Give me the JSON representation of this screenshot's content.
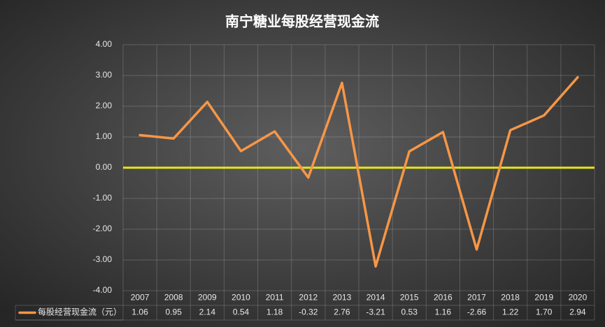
{
  "chart_data": {
    "type": "line",
    "title": "南宁糖业每股经营现金流",
    "categories": [
      "2007",
      "2008",
      "2009",
      "2010",
      "2011",
      "2012",
      "2013",
      "2014",
      "2015",
      "2016",
      "2017",
      "2018",
      "2019",
      "2020"
    ],
    "series": [
      {
        "name": "每股经营现金流（元）",
        "color": "#f79646",
        "values": [
          1.06,
          0.95,
          2.14,
          0.54,
          1.18,
          -0.32,
          2.76,
          -3.21,
          0.53,
          1.16,
          -2.66,
          1.22,
          1.7,
          2.94
        ],
        "value_labels": [
          "1.06",
          "0.95",
          "2.14",
          "0.54",
          "1.18",
          "-0.32",
          "2.76",
          "-3.21",
          "0.53",
          "1.16",
          "-2.66",
          "1.22",
          "1.70",
          "2.94"
        ]
      }
    ],
    "ylim": [
      -4,
      4
    ],
    "yticks": [
      {
        "value": -4,
        "label": "-4.00"
      },
      {
        "value": -3,
        "label": "-3.00"
      },
      {
        "value": -2,
        "label": "-2.00"
      },
      {
        "value": -1,
        "label": "-1.00"
      },
      {
        "value": 0,
        "label": "0.00"
      },
      {
        "value": 1,
        "label": "1.00"
      },
      {
        "value": 2,
        "label": "2.00"
      },
      {
        "value": 3,
        "label": "3.00"
      },
      {
        "value": 4,
        "label": "4.00"
      }
    ],
    "grid": true,
    "zero_line_color": "#e6e619"
  }
}
